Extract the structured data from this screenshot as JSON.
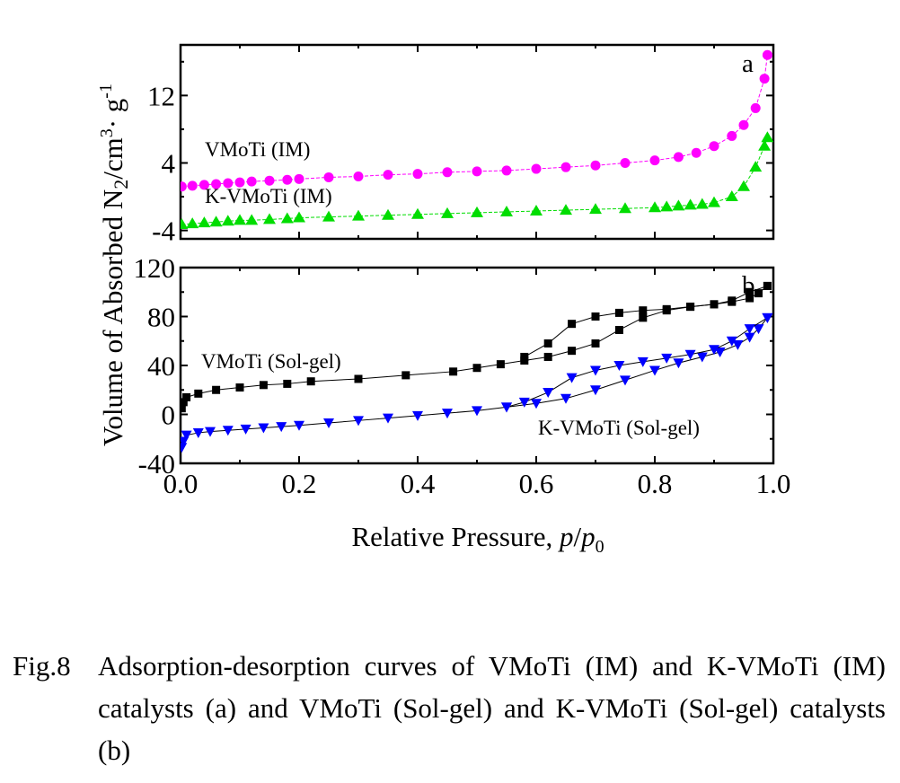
{
  "chart_data": [
    {
      "type": "line",
      "panel": "a",
      "xlim": [
        0.0,
        1.0
      ],
      "ylim": [
        -5,
        18
      ],
      "yticks": [
        -4,
        4,
        12
      ],
      "ylabel": "Volume of Absorbed N2/cm3· g-1",
      "grid": false,
      "series": [
        {
          "name": "VMoTi (IM)",
          "label": "VMoTi (IM)",
          "color": "#ff00ff",
          "marker": "circle",
          "x": [
            0.002,
            0.02,
            0.04,
            0.06,
            0.08,
            0.1,
            0.12,
            0.15,
            0.18,
            0.2,
            0.25,
            0.3,
            0.35,
            0.4,
            0.45,
            0.5,
            0.55,
            0.6,
            0.65,
            0.7,
            0.75,
            0.8,
            0.84,
            0.87,
            0.9,
            0.93,
            0.95,
            0.97,
            0.985,
            0.99
          ],
          "y": [
            1.2,
            1.3,
            1.4,
            1.5,
            1.6,
            1.7,
            1.8,
            1.9,
            2.0,
            2.1,
            2.3,
            2.4,
            2.6,
            2.7,
            2.9,
            3.0,
            3.1,
            3.3,
            3.5,
            3.7,
            4.0,
            4.3,
            4.7,
            5.2,
            6.0,
            7.2,
            8.5,
            10.5,
            14.0,
            16.8
          ]
        },
        {
          "name": "K-VMoTi (IM)",
          "label": "K-VMoTi (IM)",
          "color": "#00dd00",
          "marker": "triangle-up",
          "x": [
            0.002,
            0.02,
            0.04,
            0.06,
            0.08,
            0.1,
            0.12,
            0.15,
            0.18,
            0.2,
            0.25,
            0.3,
            0.35,
            0.4,
            0.45,
            0.5,
            0.55,
            0.6,
            0.65,
            0.7,
            0.75,
            0.8,
            0.82,
            0.84,
            0.86,
            0.88,
            0.9,
            0.93,
            0.95,
            0.97,
            0.985,
            0.99
          ],
          "y": [
            -3.3,
            -3.2,
            -3.1,
            -3.0,
            -2.9,
            -2.8,
            -2.8,
            -2.7,
            -2.6,
            -2.5,
            -2.4,
            -2.3,
            -2.2,
            -2.1,
            -2.0,
            -1.9,
            -1.8,
            -1.7,
            -1.6,
            -1.5,
            -1.4,
            -1.3,
            -1.2,
            -1.1,
            -1.0,
            -0.9,
            -0.7,
            0.0,
            1.2,
            3.5,
            6.0,
            7.0
          ]
        }
      ]
    },
    {
      "type": "line",
      "panel": "b",
      "xlim": [
        0.0,
        1.0
      ],
      "ylim": [
        -40,
        120
      ],
      "yticks": [
        -40,
        0,
        40,
        80,
        120
      ],
      "xticks": [
        "0.0",
        "0.2",
        "0.4",
        "0.6",
        "0.8",
        "1.0"
      ],
      "xlabel": "Relative Pressure, p/p0",
      "grid": false,
      "series": [
        {
          "name": "VMoTi (Sol-gel) adsorption",
          "label": "VMoTi (Sol-gel)",
          "color": "#000000",
          "marker": "square",
          "x": [
            0.002,
            0.005,
            0.01,
            0.03,
            0.06,
            0.1,
            0.14,
            0.18,
            0.22,
            0.3,
            0.38,
            0.46,
            0.5,
            0.54,
            0.58,
            0.62,
            0.66,
            0.7,
            0.74,
            0.78,
            0.82,
            0.86,
            0.9,
            0.93,
            0.96,
            0.975,
            0.99
          ],
          "y": [
            5,
            10,
            14,
            17,
            20,
            22,
            24,
            25,
            27,
            29,
            32,
            35,
            38,
            41,
            44,
            47,
            52,
            58,
            69,
            79,
            85,
            88,
            90,
            92,
            95,
            99,
            105
          ]
        },
        {
          "name": "VMoTi (Sol-gel) desorption",
          "label": "",
          "color": "#000000",
          "marker": "square",
          "x": [
            0.99,
            0.96,
            0.93,
            0.9,
            0.86,
            0.82,
            0.78,
            0.74,
            0.7,
            0.66,
            0.62,
            0.58
          ],
          "y": [
            105,
            100,
            93,
            90,
            88,
            86,
            85,
            83,
            80,
            74,
            58,
            47
          ]
        },
        {
          "name": "K-VMoTi (Sol-gel) adsorption",
          "label": "K-VMoTi (Sol-gel)",
          "color": "#0000ff",
          "marker": "triangle-down",
          "x": [
            0.002,
            0.005,
            0.01,
            0.03,
            0.05,
            0.08,
            0.11,
            0.14,
            0.17,
            0.2,
            0.25,
            0.3,
            0.35,
            0.4,
            0.45,
            0.5,
            0.55,
            0.6,
            0.65,
            0.7,
            0.75,
            0.8,
            0.84,
            0.88,
            0.91,
            0.94,
            0.96,
            0.975,
            0.99
          ],
          "y": [
            -27,
            -22,
            -17,
            -15,
            -14,
            -13,
            -12,
            -11,
            -10,
            -9,
            -7,
            -5,
            -3,
            -1,
            1,
            3,
            6,
            9,
            13,
            20,
            28,
            36,
            42,
            47,
            51,
            57,
            63,
            70,
            79
          ]
        },
        {
          "name": "K-VMoTi (Sol-gel) desorption",
          "label": "",
          "color": "#0000ff",
          "marker": "triangle-down",
          "x": [
            0.99,
            0.96,
            0.93,
            0.9,
            0.86,
            0.82,
            0.78,
            0.74,
            0.7,
            0.66,
            0.62,
            0.58,
            0.55
          ],
          "y": [
            79,
            70,
            60,
            53,
            49,
            46,
            43,
            40,
            36,
            30,
            18,
            10,
            6
          ]
        }
      ]
    }
  ],
  "caption": {
    "number": "Fig.8",
    "text": "Adsorption-desorption curves of VMoTi (IM) and K-VMoTi (IM) catalysts (a) and VMoTi (Sol-gel) and K-VMoTi (Sol-gel) catalysts (b)"
  }
}
